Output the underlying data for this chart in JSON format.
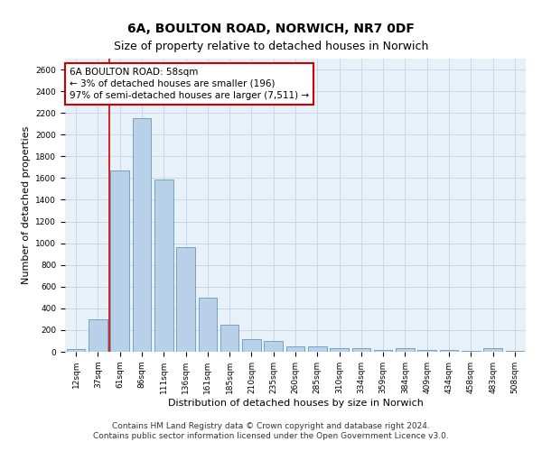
{
  "title_line1": "6A, BOULTON ROAD, NORWICH, NR7 0DF",
  "title_line2": "Size of property relative to detached houses in Norwich",
  "xlabel": "Distribution of detached houses by size in Norwich",
  "ylabel": "Number of detached properties",
  "categories": [
    "12sqm",
    "37sqm",
    "61sqm",
    "86sqm",
    "111sqm",
    "136sqm",
    "161sqm",
    "185sqm",
    "210sqm",
    "235sqm",
    "260sqm",
    "285sqm",
    "310sqm",
    "334sqm",
    "359sqm",
    "384sqm",
    "409sqm",
    "434sqm",
    "458sqm",
    "483sqm",
    "508sqm"
  ],
  "values": [
    25,
    300,
    1670,
    2150,
    1590,
    960,
    500,
    250,
    120,
    100,
    50,
    50,
    35,
    35,
    20,
    30,
    20,
    20,
    5,
    30,
    5
  ],
  "bar_color": "#b8d0e8",
  "bar_edge_color": "#6699bb",
  "vline_color": "#cc0000",
  "vline_x": 1.5,
  "annotation_text": "6A BOULTON ROAD: 58sqm\n← 3% of detached houses are smaller (196)\n97% of semi-detached houses are larger (7,511) →",
  "annotation_box_facecolor": "#ffffff",
  "annotation_box_edgecolor": "#cc0000",
  "ylim": [
    0,
    2700
  ],
  "yticks": [
    0,
    200,
    400,
    600,
    800,
    1000,
    1200,
    1400,
    1600,
    1800,
    2000,
    2200,
    2400,
    2600
  ],
  "grid_color": "#c8d8e8",
  "background_color": "#e8f0f8",
  "footer_line1": "Contains HM Land Registry data © Crown copyright and database right 2024.",
  "footer_line2": "Contains public sector information licensed under the Open Government Licence v3.0.",
  "title_fontsize": 10,
  "subtitle_fontsize": 9,
  "axis_label_fontsize": 8,
  "tick_fontsize": 6.5,
  "annotation_fontsize": 7.5,
  "footer_fontsize": 6.5
}
